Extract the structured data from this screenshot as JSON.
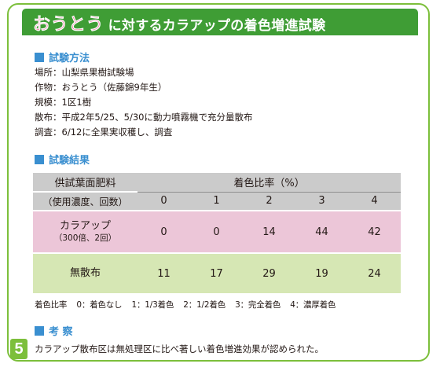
{
  "title": {
    "highlight": "おうとう",
    "rest": "に対するカラアップの着色増進試験"
  },
  "method": {
    "heading": "試験方法",
    "lines": [
      "場所：山梨県果樹試験場",
      "作物：おうとう（佐藤錦9年生）",
      "規模：1区1樹",
      "散布：平成2年5/25、5/30に動力噴霧機で充分量散布",
      "調査：6/12に全果実収穫し、調査"
    ]
  },
  "results": {
    "heading": "試験結果",
    "col_header_left_1": "供試葉面肥料",
    "col_header_left_2": "（使用濃度、回数）",
    "col_header_group": "着色比率（%）",
    "col_labels": [
      "0",
      "1",
      "2",
      "3",
      "4"
    ],
    "rows": [
      {
        "label": "カラアップ",
        "sub": "（300倍、2回）",
        "values": [
          "0",
          "0",
          "14",
          "44",
          "42"
        ]
      },
      {
        "label": "無散布",
        "sub": "",
        "values": [
          "11",
          "17",
          "29",
          "19",
          "24"
        ]
      }
    ]
  },
  "legend": {
    "label": "着色比率",
    "items": [
      "0：着色なし",
      "1：1/3着色",
      "2：1/2着色",
      "3：完全着色",
      "4：濃厚着色"
    ]
  },
  "discussion": {
    "heading": "考 察",
    "text": "カラアップ散布区は無処理区に比べ著しい着色増進効果が認められた。"
  },
  "page_number": "5",
  "colors": {
    "frame": "#7cbf3b",
    "title_bar": "#3f9d35",
    "title_highlight": "#e83a6f",
    "section_heading": "#3a8fd0",
    "row_pink": "#ecc6d8",
    "row_green": "#d6e7b4",
    "header_gray": "#cbcbcb"
  }
}
